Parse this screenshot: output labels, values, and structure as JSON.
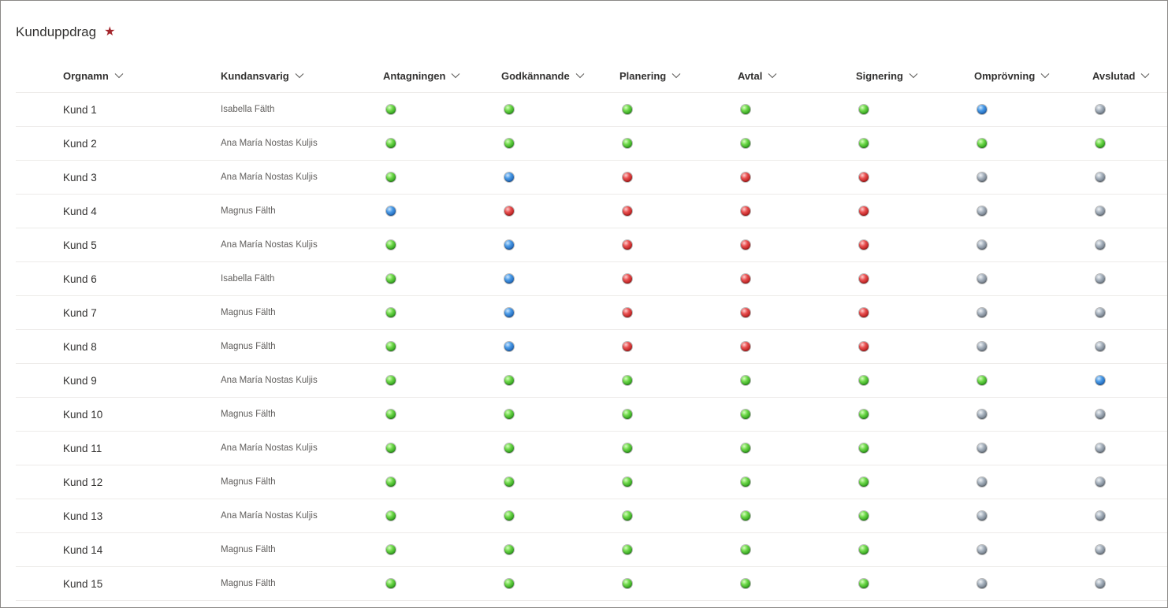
{
  "page": {
    "title": "Kunduppdrag",
    "favorite_icon": "star-icon",
    "favorite_color": "#a4262c"
  },
  "columns": [
    {
      "label": "Orgnamn",
      "icon": "chevron-down-icon"
    },
    {
      "label": "Kundansvarig",
      "icon": "chevron-down-icon"
    },
    {
      "label": "Antagningen",
      "icon": "chevron-down-icon"
    },
    {
      "label": "Godkännande",
      "icon": "chevron-down-icon"
    },
    {
      "label": "Planering",
      "icon": "chevron-down-icon"
    },
    {
      "label": "Avtal",
      "icon": "chevron-down-icon"
    },
    {
      "label": "Signering",
      "icon": "chevron-down-icon"
    },
    {
      "label": "Omprövning",
      "icon": "chevron-down-icon"
    },
    {
      "label": "Avslutad",
      "icon": "chevron-down-icon"
    }
  ],
  "status_colors": {
    "green": "#4cc234",
    "blue": "#2a7fd4",
    "red": "#d83232",
    "gray": "#8f9aa6"
  },
  "rows": [
    {
      "org": "Kund 1",
      "owner": "Isabella Fälth",
      "statuses": [
        "green",
        "green",
        "green",
        "green",
        "green",
        "blue",
        "gray"
      ]
    },
    {
      "org": "Kund 2",
      "owner": "Ana María Nostas Kuljis",
      "statuses": [
        "green",
        "green",
        "green",
        "green",
        "green",
        "green",
        "green"
      ]
    },
    {
      "org": "Kund 3",
      "owner": "Ana María Nostas Kuljis",
      "statuses": [
        "green",
        "blue",
        "red",
        "red",
        "red",
        "gray",
        "gray"
      ]
    },
    {
      "org": "Kund 4",
      "owner": "Magnus Fälth",
      "statuses": [
        "blue",
        "red",
        "red",
        "red",
        "red",
        "gray",
        "gray"
      ]
    },
    {
      "org": "Kund 5",
      "owner": "Ana María Nostas Kuljis",
      "statuses": [
        "green",
        "blue",
        "red",
        "red",
        "red",
        "gray",
        "gray"
      ]
    },
    {
      "org": "Kund 6",
      "owner": "Isabella Fälth",
      "statuses": [
        "green",
        "blue",
        "red",
        "red",
        "red",
        "gray",
        "gray"
      ]
    },
    {
      "org": "Kund 7",
      "owner": "Magnus Fälth",
      "statuses": [
        "green",
        "blue",
        "red",
        "red",
        "red",
        "gray",
        "gray"
      ]
    },
    {
      "org": "Kund 8",
      "owner": "Magnus Fälth",
      "statuses": [
        "green",
        "blue",
        "red",
        "red",
        "red",
        "gray",
        "gray"
      ]
    },
    {
      "org": "Kund 9",
      "owner": "Ana María Nostas Kuljis",
      "statuses": [
        "green",
        "green",
        "green",
        "green",
        "green",
        "green",
        "blue"
      ]
    },
    {
      "org": "Kund 10",
      "owner": "Magnus Fälth",
      "statuses": [
        "green",
        "green",
        "green",
        "green",
        "green",
        "gray",
        "gray"
      ]
    },
    {
      "org": "Kund 11",
      "owner": "Ana María Nostas Kuljis",
      "statuses": [
        "green",
        "green",
        "green",
        "green",
        "green",
        "gray",
        "gray"
      ]
    },
    {
      "org": "Kund 12",
      "owner": "Magnus Fälth",
      "statuses": [
        "green",
        "green",
        "green",
        "green",
        "green",
        "gray",
        "gray"
      ]
    },
    {
      "org": "Kund 13",
      "owner": "Ana María Nostas Kuljis",
      "statuses": [
        "green",
        "green",
        "green",
        "green",
        "green",
        "gray",
        "gray"
      ]
    },
    {
      "org": "Kund 14",
      "owner": "Magnus Fälth",
      "statuses": [
        "green",
        "green",
        "green",
        "green",
        "green",
        "gray",
        "gray"
      ]
    },
    {
      "org": "Kund 15",
      "owner": "Magnus Fälth",
      "statuses": [
        "green",
        "green",
        "green",
        "green",
        "green",
        "gray",
        "gray"
      ]
    }
  ]
}
